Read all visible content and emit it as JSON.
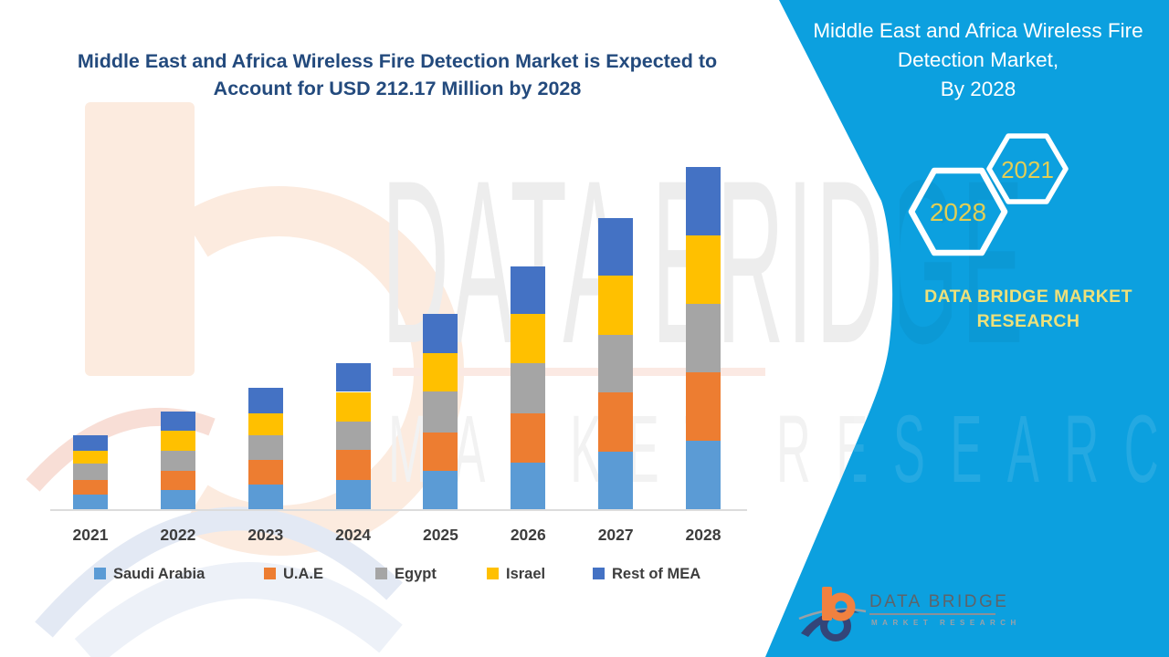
{
  "headline_lines": [
    "Middle East and Africa Wireless Fire Detection Market is Expected to",
    "Account for USD 212.17 Million by 2028"
  ],
  "right_panel": {
    "title_lines": [
      "Middle East and Africa Wireless Fire",
      "Detection Market,",
      "By 2028"
    ],
    "hexagons": [
      {
        "label": "2028"
      },
      {
        "label": "2021"
      }
    ],
    "brand_lines": [
      "DATA BRIDGE MARKET",
      "RESEARCH"
    ]
  },
  "watermark": {
    "line1": "DATA BRIDGE",
    "line2": "MARKET RESEARCH"
  },
  "footer_logo": {
    "name": "DATA BRIDGE",
    "subtitle": "MARKET RESEARCH"
  },
  "colors": {
    "panel_teal": "#0ca0df",
    "headline_blue": "#234a7d",
    "hexagon_gold": "#e2ce55",
    "brand_yellow": "#ede07a"
  },
  "chart_data": {
    "type": "bar",
    "stacked": true,
    "title": "Middle East and Africa Wireless Fire Detection Market is Expected to Account for USD 212.17 Million by 2028",
    "unit": "USD Million",
    "categories": [
      "2021",
      "2022",
      "2023",
      "2024",
      "2025",
      "2026",
      "2027",
      "2028"
    ],
    "series": [
      {
        "name": "Saudi Arabia",
        "color": "#5B9BD5",
        "values": [
          8.9,
          11.7,
          15.1,
          18.3,
          23.9,
          28.9,
          35.8,
          42.3
        ]
      },
      {
        "name": "U.A.E",
        "color": "#ED7D31",
        "values": [
          9.4,
          12.3,
          15.5,
          18.5,
          23.8,
          30.6,
          36.8,
          42.8
        ]
      },
      {
        "name": "Egypt",
        "color": "#A5A5A5",
        "values": [
          10.0,
          12.3,
          15.1,
          17.4,
          25.3,
          31.1,
          35.5,
          42.0
        ]
      },
      {
        "name": "Israel",
        "color": "#FFC000",
        "values": [
          7.9,
          12.4,
          13.7,
          18.5,
          23.8,
          30.4,
          36.8,
          42.8
        ]
      },
      {
        "name": "Rest of MEA",
        "color": "#4472C4",
        "values": [
          9.4,
          11.7,
          16.0,
          17.9,
          24.5,
          29.6,
          35.8,
          42.3
        ]
      }
    ],
    "totals_estimated": [
      45.6,
      60.4,
      75.4,
      90.6,
      121.3,
      150.6,
      180.7,
      212.17
    ],
    "anchor_total_2028": 212.17,
    "ylim": [
      0,
      225
    ],
    "grid": false,
    "y_axis_visible": false,
    "legend_position": "bottom",
    "note": "Segment values estimated from bar heights; scale anchored to the stated 2028 total of USD 212.17 Million."
  }
}
